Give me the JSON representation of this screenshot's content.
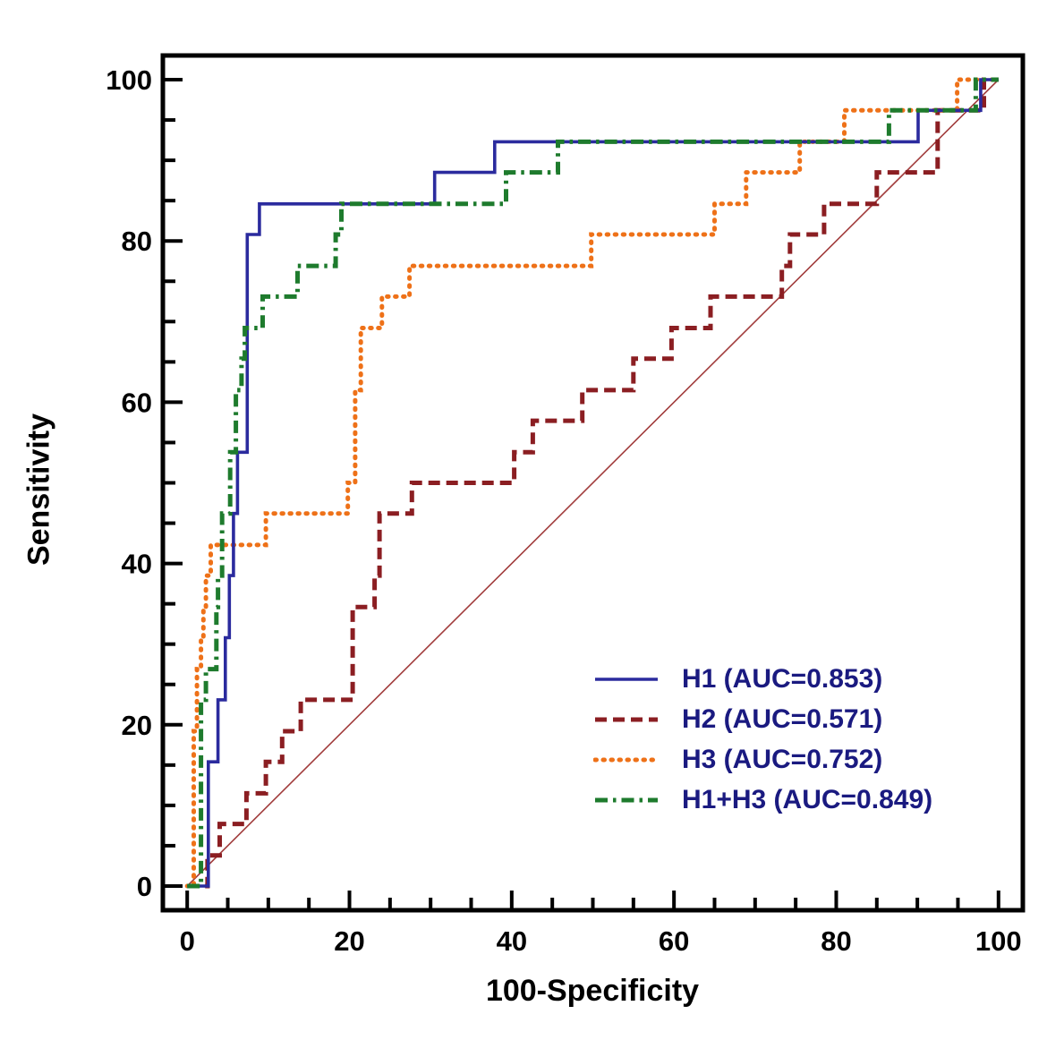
{
  "chart_data": {
    "type": "line",
    "subtype": "roc-curves",
    "title": "",
    "xlabel": "100-Specificity",
    "ylabel": "Sensitivity",
    "xlim": [
      -3,
      103
    ],
    "ylim": [
      -3,
      103
    ],
    "tick_min": 0,
    "tick_max": 100,
    "tick_major_step": 20,
    "tick_minor_step": 5,
    "x_tick_labels": [
      "0",
      "20",
      "40",
      "60",
      "80",
      "100"
    ],
    "y_tick_labels": [
      "0",
      "20",
      "40",
      "60",
      "80",
      "100"
    ],
    "grid": false,
    "legend_position": "lower-right",
    "series": [
      {
        "name": "H1",
        "auc": 0.853,
        "legend_label": "H1 (AUC=0.853)",
        "color": "#2b2b9e",
        "style": "solid",
        "dasharray": "",
        "linecap": "butt",
        "width": 3.6,
        "points": [
          [
            0,
            0
          ],
          [
            2.6,
            0
          ],
          [
            2.6,
            15.4
          ],
          [
            3.8,
            15.4
          ],
          [
            3.8,
            23.1
          ],
          [
            4.7,
            23.1
          ],
          [
            4.7,
            30.8
          ],
          [
            5.2,
            30.8
          ],
          [
            5.2,
            38.5
          ],
          [
            5.7,
            38.5
          ],
          [
            5.7,
            46.2
          ],
          [
            6.2,
            46.2
          ],
          [
            6.2,
            53.8
          ],
          [
            7.4,
            53.8
          ],
          [
            7.4,
            80.8
          ],
          [
            8.9,
            80.8
          ],
          [
            8.9,
            84.6
          ],
          [
            30.5,
            84.6
          ],
          [
            30.5,
            88.5
          ],
          [
            37.9,
            88.5
          ],
          [
            37.9,
            92.3
          ],
          [
            90.1,
            92.3
          ],
          [
            90.1,
            96.2
          ],
          [
            97.8,
            96.2
          ],
          [
            97.8,
            100
          ],
          [
            100,
            100
          ]
        ]
      },
      {
        "name": "H2",
        "auc": 0.571,
        "legend_label": "H2 (AUC=0.571)",
        "color": "#8b1e22",
        "style": "dashed",
        "dasharray": "13 7",
        "linecap": "butt",
        "width": 5,
        "points": [
          [
            0,
            0
          ],
          [
            2.5,
            0
          ],
          [
            2.5,
            3.8
          ],
          [
            4,
            3.8
          ],
          [
            4,
            7.7
          ],
          [
            7.3,
            7.7
          ],
          [
            7.3,
            11.5
          ],
          [
            9.7,
            11.5
          ],
          [
            9.7,
            15.4
          ],
          [
            11.7,
            15.4
          ],
          [
            11.7,
            19.2
          ],
          [
            14,
            19.2
          ],
          [
            14,
            23.1
          ],
          [
            20.4,
            23.1
          ],
          [
            20.4,
            34.6
          ],
          [
            23.1,
            34.6
          ],
          [
            23.1,
            38.5
          ],
          [
            23.7,
            38.5
          ],
          [
            23.7,
            46.2
          ],
          [
            27.7,
            46.2
          ],
          [
            27.7,
            50
          ],
          [
            40.3,
            50
          ],
          [
            40.3,
            53.8
          ],
          [
            42.6,
            53.8
          ],
          [
            42.6,
            57.7
          ],
          [
            48.7,
            57.7
          ],
          [
            48.7,
            61.5
          ],
          [
            55,
            61.5
          ],
          [
            55,
            65.4
          ],
          [
            59.7,
            65.4
          ],
          [
            59.7,
            69.2
          ],
          [
            64.5,
            69.2
          ],
          [
            64.5,
            73.1
          ],
          [
            73.3,
            73.1
          ],
          [
            73.3,
            76.9
          ],
          [
            74.3,
            76.9
          ],
          [
            74.3,
            80.8
          ],
          [
            78.5,
            80.8
          ],
          [
            78.5,
            84.6
          ],
          [
            85,
            84.6
          ],
          [
            85,
            88.5
          ],
          [
            92.5,
            88.5
          ],
          [
            92.5,
            96.2
          ],
          [
            98.2,
            96.2
          ],
          [
            98.2,
            100
          ],
          [
            100,
            100
          ]
        ]
      },
      {
        "name": "H3",
        "auc": 0.752,
        "legend_label": "H3 (AUC=0.752)",
        "color": "#ee7118",
        "style": "dotted",
        "dasharray": "1.5 7.5",
        "linecap": "round",
        "width": 5,
        "points": [
          [
            0,
            0
          ],
          [
            0.8,
            0
          ],
          [
            0.8,
            19.2
          ],
          [
            1.2,
            19.2
          ],
          [
            1.2,
            26.9
          ],
          [
            1.7,
            26.9
          ],
          [
            1.7,
            30.8
          ],
          [
            2,
            30.8
          ],
          [
            2,
            34.6
          ],
          [
            2.3,
            34.6
          ],
          [
            2.3,
            38.5
          ],
          [
            2.9,
            38.5
          ],
          [
            2.9,
            42.3
          ],
          [
            9.7,
            42.3
          ],
          [
            9.7,
            46.2
          ],
          [
            19.8,
            46.2
          ],
          [
            19.8,
            50
          ],
          [
            20.7,
            50
          ],
          [
            20.7,
            61.5
          ],
          [
            21.4,
            61.5
          ],
          [
            21.4,
            69.2
          ],
          [
            24,
            69.2
          ],
          [
            24,
            73.1
          ],
          [
            27.4,
            73.1
          ],
          [
            27.4,
            76.9
          ],
          [
            49.8,
            76.9
          ],
          [
            49.8,
            80.8
          ],
          [
            65,
            80.8
          ],
          [
            65,
            84.6
          ],
          [
            68.9,
            84.6
          ],
          [
            68.9,
            88.5
          ],
          [
            75.5,
            88.5
          ],
          [
            75.5,
            92.3
          ],
          [
            81,
            92.3
          ],
          [
            81,
            96.2
          ],
          [
            94.9,
            96.2
          ],
          [
            94.9,
            100
          ],
          [
            100,
            100
          ]
        ]
      },
      {
        "name": "H1+H3",
        "auc": 0.849,
        "legend_label": "H1+H3 (AUC=0.849)",
        "color": "#1e7b2d",
        "style": "dashdot",
        "dasharray": "14 6 3.5 6",
        "linecap": "butt",
        "width": 5,
        "points": [
          [
            0,
            0
          ],
          [
            1.7,
            0
          ],
          [
            1.7,
            23.1
          ],
          [
            2.3,
            23.1
          ],
          [
            2.3,
            26.9
          ],
          [
            3.6,
            26.9
          ],
          [
            3.6,
            34.6
          ],
          [
            3.8,
            34.6
          ],
          [
            3.8,
            38.5
          ],
          [
            4.3,
            38.5
          ],
          [
            4.3,
            46.2
          ],
          [
            5.3,
            46.2
          ],
          [
            5.3,
            53.8
          ],
          [
            6,
            53.8
          ],
          [
            6,
            61.5
          ],
          [
            6.7,
            61.5
          ],
          [
            6.7,
            65.4
          ],
          [
            7.1,
            65.4
          ],
          [
            7.1,
            69.2
          ],
          [
            9.3,
            69.2
          ],
          [
            9.3,
            73.1
          ],
          [
            13.6,
            73.1
          ],
          [
            13.6,
            76.9
          ],
          [
            18.3,
            76.9
          ],
          [
            18.3,
            80.8
          ],
          [
            19,
            80.8
          ],
          [
            19,
            84.6
          ],
          [
            39.3,
            84.6
          ],
          [
            39.3,
            88.5
          ],
          [
            45.7,
            88.5
          ],
          [
            45.7,
            92.3
          ],
          [
            86.5,
            92.3
          ],
          [
            86.5,
            96.2
          ],
          [
            97.2,
            96.2
          ],
          [
            97.2,
            100
          ],
          [
            100,
            100
          ]
        ]
      }
    ],
    "reference_line": {
      "name": "chance-diagonal",
      "color": "#a13c3c",
      "width": 1.6,
      "points": [
        [
          0,
          0
        ],
        [
          100,
          100
        ]
      ]
    }
  },
  "colors": {
    "axis": "#000000",
    "tick_label": "#000000",
    "legend_text": "#1a1a80",
    "background": "#ffffff"
  }
}
